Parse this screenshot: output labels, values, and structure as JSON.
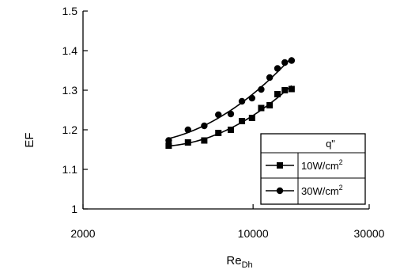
{
  "chart_data": {
    "type": "scatter",
    "title": "",
    "xlabel": "Re",
    "xlabel_sub": "Dh",
    "ylabel": "EF",
    "xscale": "log",
    "xlim": [
      2000,
      30000
    ],
    "ylim": [
      1.0,
      1.5
    ],
    "xticks": [
      2000,
      10000,
      30000
    ],
    "xtick_labels": [
      "2000",
      "10000",
      "30000"
    ],
    "yticks": [
      1.0,
      1.1,
      1.2,
      1.3,
      1.4,
      1.5
    ],
    "ytick_labels": [
      "1",
      "1.1",
      "1.2",
      "1.3",
      "1.4",
      "1.5"
    ],
    "grid": false,
    "legend": {
      "title": "q\"",
      "position": "bottom-right"
    },
    "series": [
      {
        "name": "10W/cm²",
        "unit_base": "10W/cm",
        "unit_sup": "2",
        "marker": "square",
        "x": [
          4500,
          5400,
          6300,
          7200,
          8100,
          9000,
          9900,
          10800,
          11700,
          12600,
          13500,
          14400
        ],
        "y": [
          1.16,
          1.168,
          1.173,
          1.192,
          1.2,
          1.222,
          1.23,
          1.255,
          1.262,
          1.29,
          1.3,
          1.303
        ]
      },
      {
        "name": "30W/cm²",
        "unit_base": "30W/cm",
        "unit_sup": "2",
        "marker": "circle",
        "x": [
          4500,
          5400,
          6300,
          7200,
          8100,
          9000,
          9900,
          10800,
          11700,
          12600,
          13500,
          14400
        ],
        "y": [
          1.173,
          1.2,
          1.21,
          1.238,
          1.24,
          1.272,
          1.28,
          1.302,
          1.332,
          1.355,
          1.37,
          1.375
        ]
      }
    ]
  }
}
